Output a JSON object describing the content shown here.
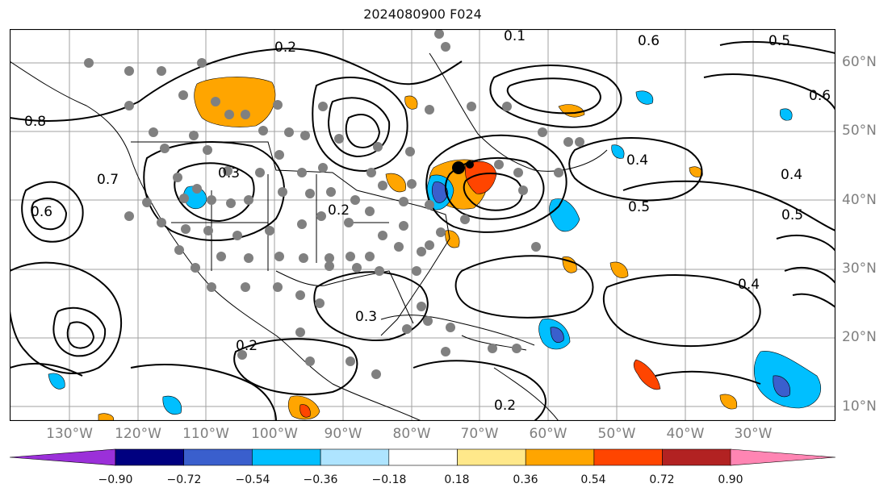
{
  "title": "2024080900 F024",
  "map": {
    "lat_labels": [
      "60°N",
      "50°N",
      "40°N",
      "30°N",
      "20°N",
      "10°N"
    ],
    "lon_labels": [
      "130°W",
      "120°W",
      "110°W",
      "100°W",
      "90°W",
      "80°W",
      "70°W",
      "60°W",
      "50°W",
      "40°W",
      "30°W"
    ],
    "contour_labels": [
      "0.2",
      "0.1",
      "0.6",
      "0.5",
      "0.8",
      "0.7",
      "0.3",
      "0.4",
      "0.2",
      "0.5",
      "0.4",
      "0.6",
      "0.3",
      "0.2",
      "0.4",
      "0.5",
      "0.6",
      "0.2"
    ]
  },
  "colorbar": {
    "ticks": [
      "−0.90",
      "−0.72",
      "−0.54",
      "−0.36",
      "−0.18",
      "0.18",
      "0.36",
      "0.54",
      "0.72",
      "0.90"
    ],
    "colors": [
      "#9b30d9",
      "#000080",
      "#3a5fcd",
      "#00bfff",
      "#aee4ff",
      "#ffffff",
      "#ffe88a",
      "#ffa500",
      "#ff4500",
      "#b22222",
      "#ff85b3"
    ]
  },
  "colors": {
    "positive_fill": "#ffa500",
    "positive_strong": "#ff4500",
    "negative_fill": "#00bfff",
    "negative_strong": "#3a5fcd",
    "station_marker": "#808080",
    "grid": "#a0a0a0"
  }
}
